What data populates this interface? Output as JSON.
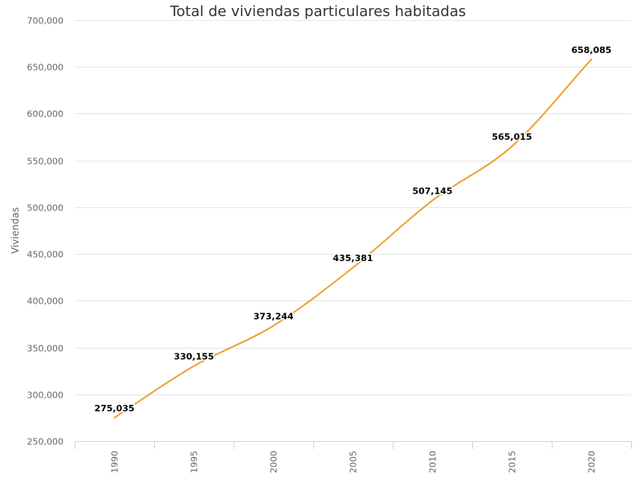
{
  "chart_data": {
    "type": "line",
    "title": "Total de viviendas particulares habitadas",
    "xlabel": "",
    "ylabel": "Viviendas",
    "categories": [
      "1990",
      "1995",
      "2000",
      "2005",
      "2010",
      "2015",
      "2020"
    ],
    "series": [
      {
        "name": "Viviendas",
        "values": [
          275035,
          330155,
          373244,
          435381,
          507145,
          565015,
          658085
        ],
        "labels": [
          "275,035",
          "330,155",
          "373,244",
          "435,381",
          "507,145",
          "565,015",
          "658,085"
        ],
        "color": "#f0a030"
      }
    ],
    "ylim": [
      250000,
      700000
    ],
    "yticks": [
      "250,000",
      "300,000",
      "350,000",
      "400,000",
      "450,000",
      "500,000",
      "550,000",
      "600,000",
      "650,000",
      "700,000"
    ],
    "ytick_values": [
      250000,
      300000,
      350000,
      400000,
      450000,
      500000,
      550000,
      600000,
      650000,
      700000
    ],
    "grid": true,
    "gridline_color": "#e6e6e6",
    "axis_color": "#ccd6eb"
  }
}
